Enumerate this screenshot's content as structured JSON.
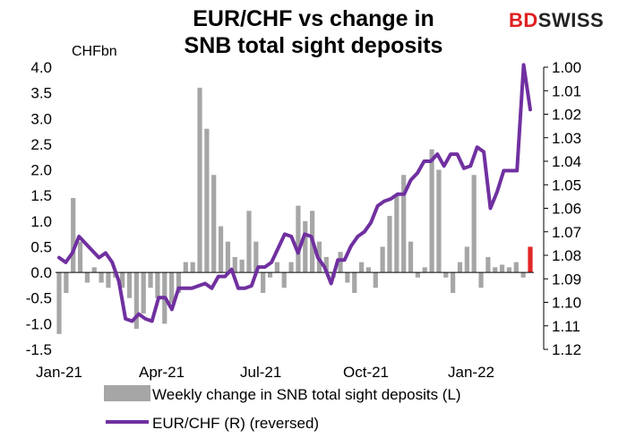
{
  "title_line1": "EUR/CHF vs change in",
  "title_line2": "SNB total sight deposits",
  "brand": {
    "part1": "BD",
    "part2": "SWISS",
    "accent": "#e02020"
  },
  "colors": {
    "bars": "#a6a6a6",
    "highlight_bar": "#e32626",
    "line": "#7030a0"
  },
  "chart_data": {
    "type": "bar+line",
    "left_axis_unit": "CHFbn",
    "left_ylim": [
      -1.5,
      4.0
    ],
    "left_ticks": [
      "4.0",
      "3.5",
      "3.0",
      "2.5",
      "2.0",
      "1.5",
      "1.0",
      "0.5",
      "0.0",
      "-0.5",
      "-1.0",
      "-1.5"
    ],
    "right_ylim_reversed": [
      1.0,
      1.12
    ],
    "right_ticks": [
      "1.00",
      "1.01",
      "1.02",
      "1.03",
      "1.04",
      "1.05",
      "1.06",
      "1.07",
      "1.08",
      "1.09",
      "1.10",
      "1.11",
      "1.12"
    ],
    "x_tick_labels": [
      "Jan-21",
      "Apr-21",
      "Jul-21",
      "Oct-21",
      "Jan-22"
    ],
    "series": [
      {
        "name": "Weekly change in SNB total sight deposits (L)",
        "kind": "bar",
        "values": [
          -1.2,
          -0.4,
          1.45,
          0.6,
          -0.2,
          0.1,
          -0.2,
          -0.3,
          -0.1,
          -0.3,
          -0.5,
          -1.1,
          -0.8,
          -0.3,
          -0.5,
          -1.0,
          -0.6,
          -0.4,
          0.2,
          0.2,
          3.6,
          2.8,
          1.9,
          0.9,
          0.6,
          0.3,
          0.25,
          1.2,
          0.6,
          -0.4,
          -0.1,
          0.2,
          -0.3,
          0.2,
          1.3,
          1.0,
          1.2,
          0.6,
          0.3,
          -0.1,
          0.4,
          -0.2,
          -0.4,
          0.2,
          0.1,
          -0.3,
          0.5,
          1.1,
          1.5,
          1.9,
          0.6,
          -0.1,
          0.1,
          2.4,
          2.0,
          -0.1,
          -0.4,
          0.2,
          0.5,
          1.9,
          -0.3,
          0.3,
          0.1,
          0.15,
          0.1,
          0.2,
          -0.1,
          0.5
        ]
      },
      {
        "name": "EUR/CHF (R) (reversed)",
        "kind": "line",
        "values": [
          1.081,
          1.083,
          1.079,
          1.072,
          1.075,
          1.078,
          1.081,
          1.079,
          1.083,
          1.091,
          1.107,
          1.108,
          1.105,
          1.107,
          1.108,
          1.098,
          1.098,
          1.103,
          1.094,
          1.094,
          1.094,
          1.093,
          1.092,
          1.094,
          1.089,
          1.089,
          1.086,
          1.094,
          1.094,
          1.093,
          1.085,
          1.085,
          1.083,
          1.077,
          1.071,
          1.072,
          1.079,
          1.071,
          1.072,
          1.081,
          1.085,
          1.092,
          1.082,
          1.082,
          1.076,
          1.072,
          1.07,
          1.066,
          1.059,
          1.057,
          1.056,
          1.054,
          1.054,
          1.048,
          1.045,
          1.04,
          1.04,
          1.037,
          1.042,
          1.037,
          1.037,
          1.043,
          1.042,
          1.034,
          1.036,
          1.06,
          1.053,
          1.044,
          1.044,
          1.044,
          0.999,
          1.018
        ]
      }
    ]
  }
}
